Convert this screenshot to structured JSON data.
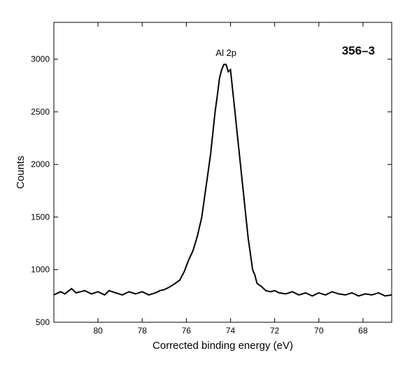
{
  "chart_data": {
    "type": "line",
    "title": "",
    "panel_label": "356–3",
    "xlabel": "Corrected binding energy (eV)",
    "ylabel": "Counts",
    "x_reversed": true,
    "xlim": [
      82,
      66.7
    ],
    "ylim": [
      500,
      3350
    ],
    "x_ticks": [
      80,
      78,
      76,
      74,
      72,
      70,
      68
    ],
    "y_ticks": [
      500,
      1000,
      1500,
      2000,
      2500,
      3000
    ],
    "grid": false,
    "annotations": [
      {
        "text": "Al 2p",
        "x": 74.2,
        "y": 3030
      }
    ],
    "series": [
      {
        "x": [
          82.0,
          81.7,
          81.5,
          81.2,
          81.0,
          80.6,
          80.3,
          80.0,
          79.7,
          79.5,
          79.2,
          78.9,
          78.6,
          78.3,
          78.0,
          77.7,
          77.4,
          77.2,
          77.0,
          76.8,
          76.5,
          76.3,
          76.1,
          75.9,
          75.7,
          75.5,
          75.3,
          75.1,
          75.0,
          74.9,
          74.8,
          74.7,
          74.6,
          74.5,
          74.4,
          74.3,
          74.2,
          74.1,
          74.0,
          73.9,
          73.8,
          73.7,
          73.6,
          73.5,
          73.4,
          73.3,
          73.2,
          73.1,
          73.0,
          72.9,
          72.8,
          72.6,
          72.4,
          72.2,
          72.0,
          71.8,
          71.5,
          71.2,
          70.9,
          70.6,
          70.3,
          70.0,
          69.7,
          69.4,
          69.1,
          68.8,
          68.5,
          68.2,
          67.9,
          67.6,
          67.3,
          67.0,
          66.7
        ],
        "y": [
          760,
          790,
          770,
          820,
          780,
          800,
          770,
          790,
          760,
          800,
          780,
          760,
          790,
          770,
          790,
          760,
          780,
          800,
          810,
          830,
          870,
          900,
          980,
          1090,
          1180,
          1320,
          1500,
          1800,
          1950,
          2100,
          2300,
          2500,
          2650,
          2820,
          2900,
          2950,
          2950,
          2880,
          2900,
          2700,
          2500,
          2300,
          2100,
          1900,
          1700,
          1500,
          1300,
          1150,
          1000,
          950,
          870,
          840,
          800,
          790,
          800,
          780,
          770,
          790,
          760,
          780,
          750,
          780,
          760,
          790,
          770,
          760,
          780,
          750,
          770,
          760,
          780,
          750,
          760
        ]
      }
    ]
  }
}
